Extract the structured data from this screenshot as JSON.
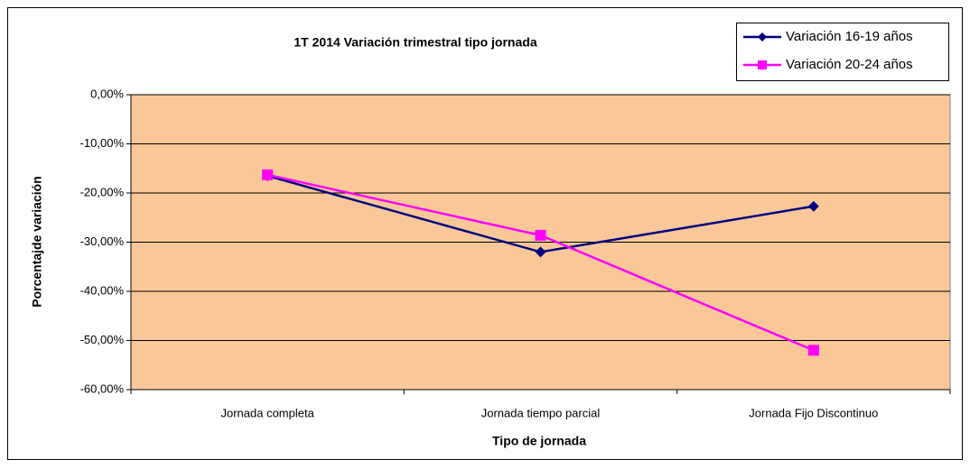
{
  "chart_data": {
    "type": "line",
    "title": "1T 2014 Variación trimestral tipo jornada",
    "x_label": "Tipo de jornada",
    "y_label": "Porcentajde variación",
    "categories": [
      "Jornada completa",
      "Jornada tiempo parcial",
      "Jornada Fijo Discontinuo"
    ],
    "series": [
      {
        "name": "Variación 16-19 años",
        "color": "#000080",
        "marker": "diamond",
        "values": [
          -16.5,
          -32,
          -22.7
        ]
      },
      {
        "name": "Variación 20-24 años",
        "color": "#FF00FF",
        "marker": "square",
        "values": [
          -16.3,
          -28.6,
          -52
        ]
      }
    ],
    "ylim": [
      -60,
      0
    ],
    "yticks": [
      {
        "value": 0,
        "label": "0,00%"
      },
      {
        "value": -10,
        "label": "-10,00%"
      },
      {
        "value": -20,
        "label": "-20,00%"
      },
      {
        "value": -30,
        "label": "-30,00%"
      },
      {
        "value": -40,
        "label": "-40,00%"
      },
      {
        "value": -50,
        "label": "-50,00%"
      },
      {
        "value": -60,
        "label": "-60,00%"
      }
    ],
    "grid": true,
    "plot_background": "#FAC898",
    "legend_position": "top-right"
  }
}
